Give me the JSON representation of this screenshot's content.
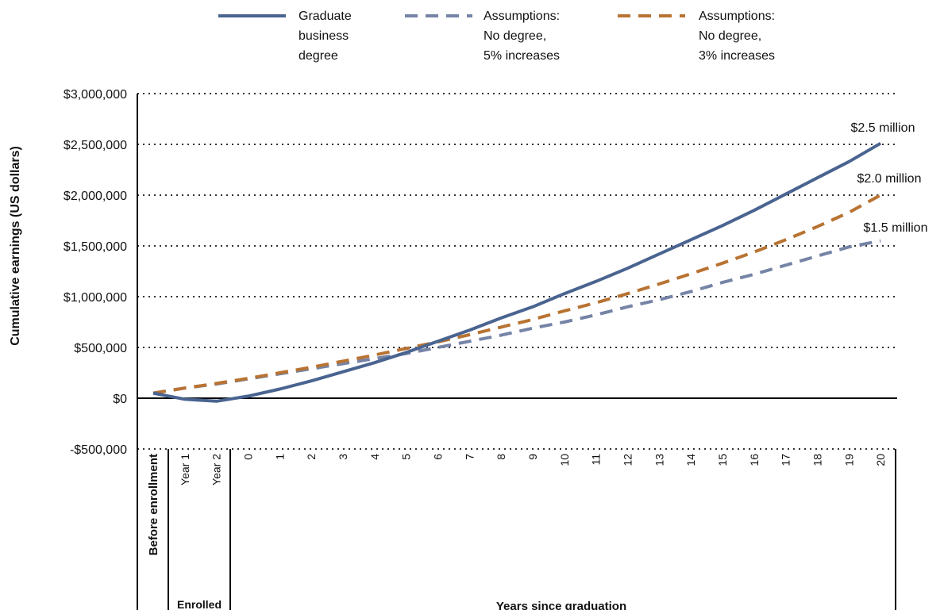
{
  "chart_data": {
    "type": "line",
    "ylabel": "Cumulative earnings (US dollars)",
    "categories": [
      "Before enrollment",
      "Year 1",
      "Year 2",
      "0",
      "1",
      "2",
      "3",
      "4",
      "5",
      "6",
      "7",
      "8",
      "9",
      "10",
      "11",
      "12",
      "13",
      "14",
      "15",
      "16",
      "17",
      "18",
      "19",
      "20"
    ],
    "groups": [
      "Enrolled",
      "Years since graduation"
    ],
    "series": [
      {
        "name": "Graduate\nbusiness\ndegree",
        "color": "#4a6490",
        "dashed": false,
        "values": [
          50000,
          -10000,
          -30000,
          20000,
          90000,
          170000,
          260000,
          350000,
          450000,
          560000,
          670000,
          790000,
          900000,
          1030000,
          1150000,
          1280000,
          1420000,
          1560000,
          1700000,
          1850000,
          2010000,
          2170000,
          2330000,
          2510000
        ]
      },
      {
        "name": "Assumptions:\nNo degree,\n5% increases",
        "color": "#7584a6",
        "dashed": true,
        "values": [
          50000,
          100000,
          140000,
          190000,
          240000,
          290000,
          340000,
          390000,
          440000,
          500000,
          560000,
          620000,
          690000,
          750000,
          820000,
          900000,
          970000,
          1050000,
          1140000,
          1220000,
          1310000,
          1400000,
          1490000,
          1550000
        ]
      },
      {
        "name": "Assumptions:\nNo degree,\n3% increases",
        "color": "#b87332",
        "dashed": true,
        "values": [
          50000,
          100000,
          145000,
          195000,
          250000,
          305000,
          365000,
          425000,
          490000,
          555000,
          625000,
          700000,
          775000,
          860000,
          940000,
          1030000,
          1125000,
          1225000,
          1330000,
          1440000,
          1560000,
          1690000,
          1830000,
          2000000
        ]
      }
    ],
    "annotations": [
      "$2.5 million",
      "$2.0 million",
      "$1.5 million"
    ],
    "ylim": [
      -500000,
      3000000
    ],
    "yticks": [
      {
        "value": -500000,
        "label": "-$500,000"
      },
      {
        "value": 0,
        "label": "$0"
      },
      {
        "value": 500000,
        "label": "$500,000"
      },
      {
        "value": 1000000,
        "label": "$1,000,000"
      },
      {
        "value": 1500000,
        "label": "$1,500,000"
      },
      {
        "value": 2000000,
        "label": "$2,000,000"
      },
      {
        "value": 2500000,
        "label": "$2,500,000"
      },
      {
        "value": 3000000,
        "label": "$3,000,000"
      }
    ],
    "grid": true
  }
}
